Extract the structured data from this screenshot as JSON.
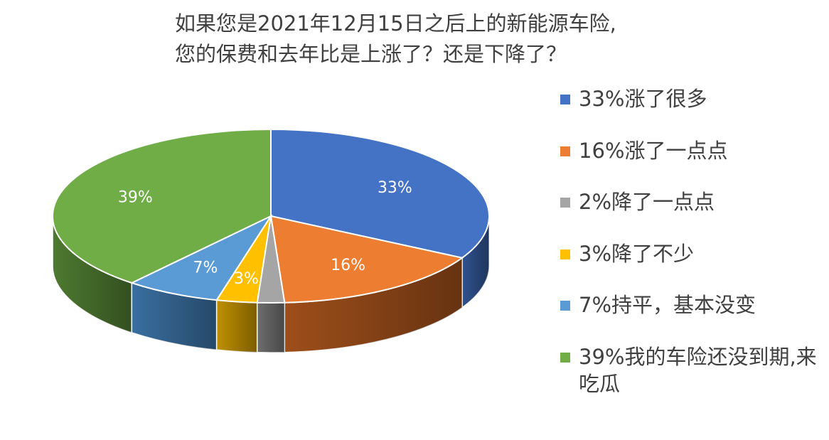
{
  "chart_data": {
    "type": "pie",
    "title_lines": [
      "如果您是2021年12月15日之后上的新能源车险,",
      "您的保费和去年比是上涨了？还是下降了？"
    ],
    "slices": [
      {
        "key": "up_much",
        "value": 33,
        "data_label": "33%",
        "legend": "33%涨了很多",
        "color": "#4472C4",
        "side_color": "#2F528F"
      },
      {
        "key": "up_little",
        "value": 16,
        "data_label": "16%",
        "legend": "16%涨了一点点",
        "color": "#ED7D31",
        "side_color": "#9E4E1A"
      },
      {
        "key": "down_little",
        "value": 2,
        "data_label": "",
        "legend": "2%降了一点点",
        "color": "#A5A5A5",
        "side_color": "#6E6E6E"
      },
      {
        "key": "down_some",
        "value": 3,
        "data_label": "3%",
        "legend": "3%降了不少",
        "color": "#FFC000",
        "side_color": "#BF9000"
      },
      {
        "key": "flat",
        "value": 7,
        "data_label": "7%",
        "legend": "7%持平，基本没变",
        "color": "#5B9BD5",
        "side_color": "#3A6FA0"
      },
      {
        "key": "not_due",
        "value": 39,
        "data_label": "39%",
        "legend": "39%我的车险还没到期,来吃瓜",
        "color": "#70AD47",
        "side_color": "#4E7A31"
      }
    ],
    "start_angle_deg": 0,
    "direction": "clockwise",
    "legend_position": "right",
    "style": "3d"
  }
}
